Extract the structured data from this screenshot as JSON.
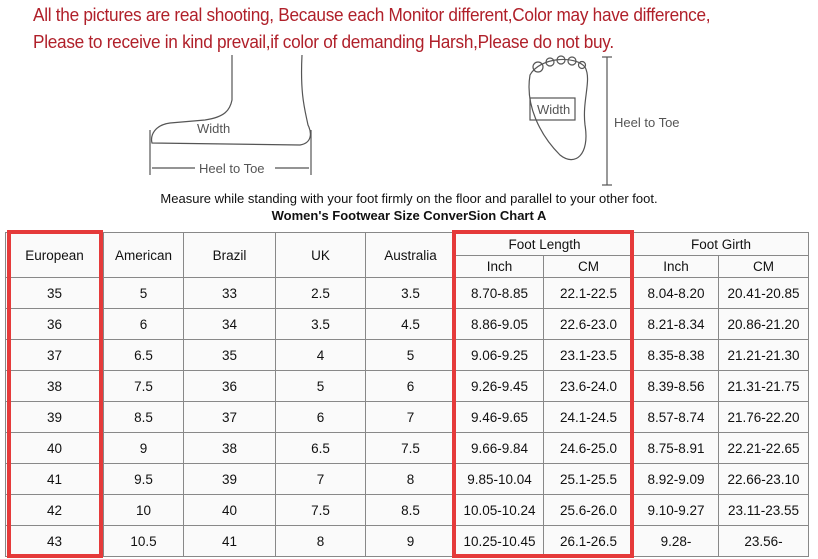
{
  "notice": [
    "All the pictures are real shooting, Because each Monitor different,Color may have difference,",
    "Please to receive in kind prevail,if color of demanding Harsh,Please do not buy."
  ],
  "diagram": {
    "side_width": "Width",
    "side_length": "Heel to Toe",
    "top_width": "Width",
    "top_length": "Heel to Toe"
  },
  "instruction": "Measure while standing with your foot firmly on the floor and parallel to your other foot.",
  "chart_title": "Women's Footwear Size ConverSion Chart A",
  "headers": {
    "european": "European",
    "american": "American",
    "brazil": "Brazil",
    "uk": "UK",
    "australia": "Australia",
    "foot_length": "Foot Length",
    "foot_girth": "Foot Girth",
    "inch": "Inch",
    "cm": "CM"
  },
  "highlight_color": "#e53a3a",
  "rows": [
    [
      "35",
      "5",
      "33",
      "2.5",
      "3.5",
      "8.70-8.85",
      "22.1-22.5",
      "8.04-8.20",
      "20.41-20.85"
    ],
    [
      "36",
      "6",
      "34",
      "3.5",
      "4.5",
      "8.86-9.05",
      "22.6-23.0",
      "8.21-8.34",
      "20.86-21.20"
    ],
    [
      "37",
      "6.5",
      "35",
      "4",
      "5",
      "9.06-9.25",
      "23.1-23.5",
      "8.35-8.38",
      "21.21-21.30"
    ],
    [
      "38",
      "7.5",
      "36",
      "5",
      "6",
      "9.26-9.45",
      "23.6-24.0",
      "8.39-8.56",
      "21.31-21.75"
    ],
    [
      "39",
      "8.5",
      "37",
      "6",
      "7",
      "9.46-9.65",
      "24.1-24.5",
      "8.57-8.74",
      "21.76-22.20"
    ],
    [
      "40",
      "9",
      "38",
      "6.5",
      "7.5",
      "9.66-9.84",
      "24.6-25.0",
      "8.75-8.91",
      "22.21-22.65"
    ],
    [
      "41",
      "9.5",
      "39",
      "7",
      "8",
      "9.85-10.04",
      "25.1-25.5",
      "8.92-9.09",
      "22.66-23.10"
    ],
    [
      "42",
      "10",
      "40",
      "7.5",
      "8.5",
      "10.05-10.24",
      "25.6-26.0",
      "9.10-9.27",
      "23.11-23.55"
    ],
    [
      "43",
      "10.5",
      "41",
      "8",
      "9",
      "10.25-10.45",
      "26.1-26.5",
      "9.28-",
      "23.56-"
    ]
  ]
}
